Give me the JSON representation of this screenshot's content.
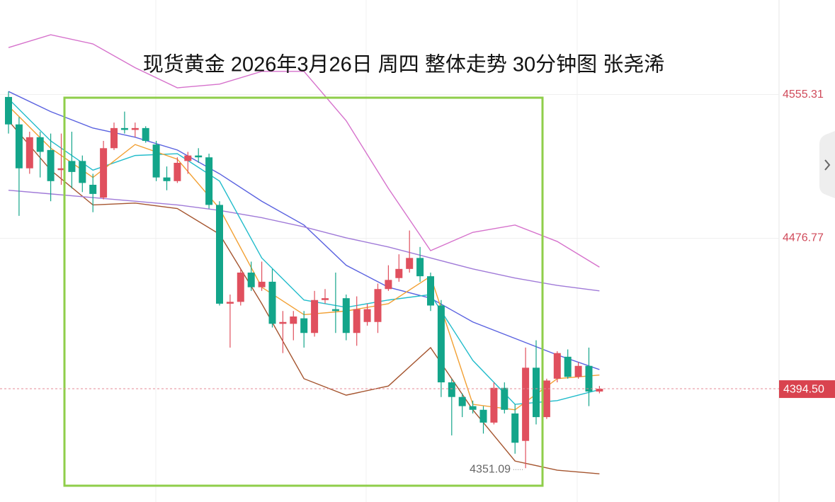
{
  "chart_data": {
    "type": "candlestick",
    "title": "现货黄金 2026年3月26日 周四 整体走势 30分钟图 张尧浠",
    "open": [
      4554,
      4539,
      4515,
      4532,
      4525,
      4514,
      4519,
      4519,
      4506,
      4499,
      4526,
      4537,
      4536,
      4537,
      4528,
      4510,
      4508,
      4519,
      4522,
      4521,
      4495,
      4441,
      4442,
      4458,
      4450,
      4453,
      4430,
      4430,
      4433,
      4425,
      4443,
      4438,
      4444,
      4425,
      4431,
      4431,
      4449,
      4455,
      4460,
      4466,
      4456,
      4440,
      4398,
      4390,
      4385,
      4383,
      4376,
      4395,
      4381,
      4366,
      4406,
      4379,
      4400,
      4412,
      4401,
      4407,
      4393
    ],
    "high": [
      4557,
      4543,
      4535,
      4535,
      4534,
      4534,
      4535,
      4522,
      4512,
      4530,
      4540,
      4546,
      4540,
      4538,
      4530,
      4516,
      4521,
      4524,
      4526,
      4523,
      4497,
      4446,
      4460,
      4464,
      4464,
      4460,
      4437,
      4437,
      4437,
      4448,
      4449,
      4458,
      4446,
      4445,
      4441,
      4452,
      4462,
      4468,
      4481,
      4472,
      4458,
      4443,
      4400,
      4392,
      4388,
      4385,
      4398,
      4398,
      4386,
      4417,
      4421,
      4400,
      4415,
      4416,
      4409,
      4417,
      4396
    ],
    "low": [
      4534,
      4489,
      4512,
      4510,
      4497,
      4506,
      4504,
      4502,
      4491,
      4498,
      4525,
      4534,
      4532,
      4529,
      4508,
      4503,
      4507,
      4512,
      4518,
      4493,
      4440,
      4417,
      4440,
      4448,
      4448,
      4428,
      4414,
      4421,
      4417,
      4423,
      4441,
      4425,
      4421,
      4418,
      4429,
      4425,
      4448,
      4453,
      4458,
      4453,
      4437,
      4390,
      4369,
      4379,
      4381,
      4370,
      4375,
      4381,
      4359,
      4351.09,
      4375,
      4378,
      4398,
      4400,
      4400,
      4385,
      4392
    ],
    "close": [
      4539,
      4515,
      4532,
      4524,
      4508,
      4515,
      4513,
      4507,
      4501,
      4526,
      4537,
      4536,
      4537,
      4530,
      4510,
      4508,
      4518,
      4522,
      4521,
      4495,
      4441,
      4442,
      4458,
      4450,
      4453,
      4430,
      4431,
      4434,
      4425,
      4443,
      4444,
      4437,
      4425,
      4438,
      4438,
      4449,
      4454,
      4460,
      4466,
      4456,
      4440,
      4398,
      4390,
      4385,
      4383,
      4376,
      4395,
      4383,
      4365,
      4406,
      4379,
      4399,
      4414,
      4401,
      4407,
      4393,
      4394.5
    ],
    "up_color": "#e0505e",
    "down_color": "#13a58a",
    "last_label": "4394.50",
    "lines": [
      {
        "color": "#d672cc",
        "x": [
          0,
          4,
          8,
          12,
          16,
          20,
          24,
          28,
          32,
          36,
          40,
          44,
          48,
          52,
          56
        ],
        "values": [
          4581,
          4588,
          4583,
          4570,
          4559,
          4561,
          4568,
          4568,
          4541,
          4504,
          4470,
          4480,
          4484,
          4475,
          4461
        ]
      },
      {
        "color": "#a5552f",
        "x": [
          0,
          4,
          8,
          12,
          16,
          20,
          24,
          28,
          32,
          36,
          40,
          44,
          48,
          52,
          56
        ],
        "values": [
          4541,
          4514,
          4495,
          4496,
          4493,
          4479,
          4441,
          4400,
          4391,
          4396,
          4417,
          4383,
          4355,
          4350,
          4348
        ]
      },
      {
        "color": "#5a62e0",
        "x": [
          0,
          4,
          8,
          12,
          16,
          20,
          24,
          28,
          32,
          36,
          40,
          44,
          48,
          52,
          56
        ],
        "values": [
          4557,
          4546,
          4537,
          4532,
          4525,
          4512,
          4497,
          4484,
          4462,
          4450,
          4444,
          4431,
          4422,
          4413,
          4405
        ]
      },
      {
        "color": "#a07ad8",
        "x": [
          0,
          4,
          8,
          12,
          16,
          20,
          24,
          28,
          32,
          36,
          40,
          44,
          48,
          52,
          56
        ],
        "values": [
          4503,
          4501,
          4499,
          4497,
          4495,
          4492,
          4488,
          4483,
          4477,
          4472,
          4466,
          4460,
          4455,
          4451,
          4448
        ]
      },
      {
        "color": "#22bccb",
        "x": [
          0,
          4,
          8,
          12,
          16,
          20,
          24,
          28,
          32,
          36,
          40,
          44,
          48,
          52,
          56
        ],
        "values": [
          4553,
          4530,
          4514,
          4522,
          4523,
          4508,
          4466,
          4443,
          4439,
          4443,
          4446,
          4410,
          4386,
          4388,
          4394
        ]
      },
      {
        "color": "#f2a033",
        "x": [
          0,
          4,
          8,
          12,
          16,
          20,
          24,
          28,
          32,
          36,
          40,
          44,
          48,
          52,
          56
        ],
        "values": [
          4549,
          4526,
          4510,
          4528,
          4520,
          4493,
          4450,
          4435,
          4437,
          4441,
          4456,
          4386,
          4383,
          4400,
          4402
        ]
      }
    ],
    "ylim": [
      4332.6,
      4607
    ],
    "yticks": [
      4555.31,
      4476.77
    ],
    "grid": true
  }
}
